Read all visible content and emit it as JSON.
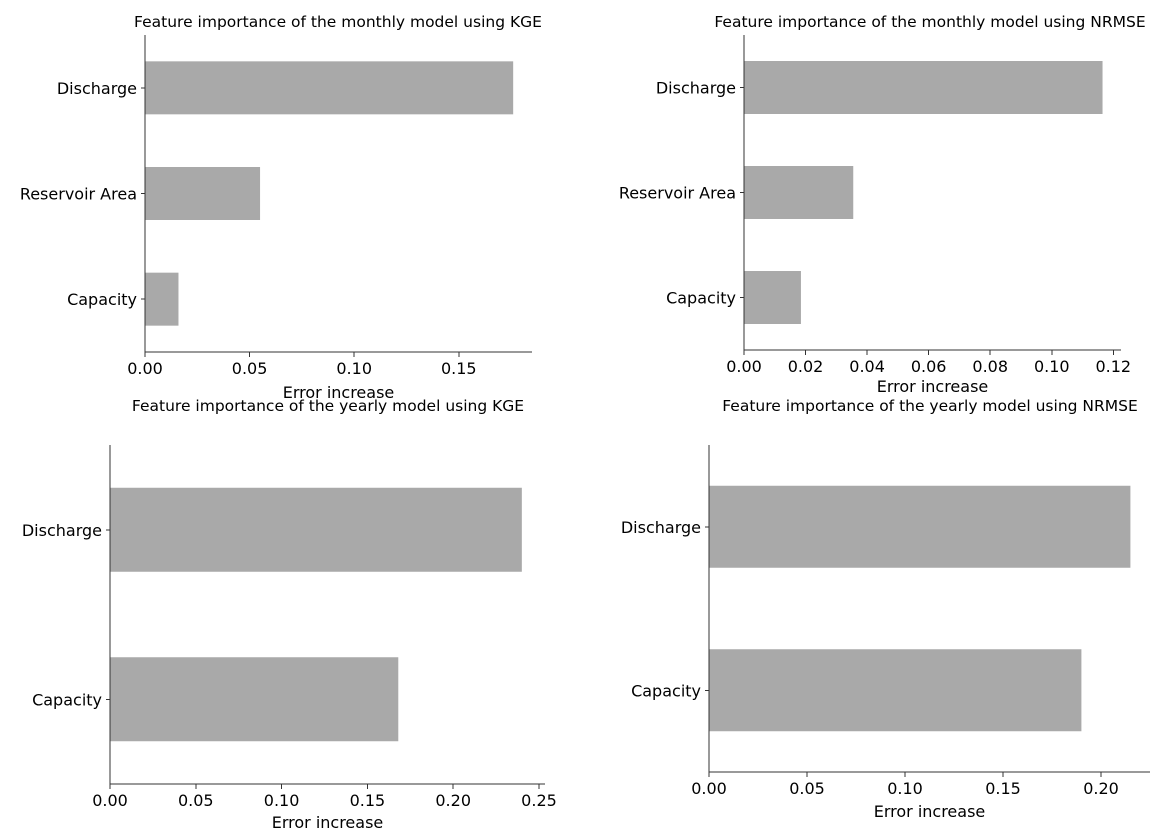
{
  "chart_data": [
    {
      "type": "bar",
      "orientation": "horizontal",
      "title": "Feature importance of the monthly model using KGE",
      "xlabel": "Error increase",
      "ylabel": "",
      "categories": [
        "Discharge",
        "Reservoir Area",
        "Capacity"
      ],
      "values": [
        0.176,
        0.055,
        0.016
      ],
      "xlim": [
        0,
        0.185
      ],
      "xticks": [
        "0.00",
        "0.05",
        "0.10",
        "0.15"
      ],
      "xtick_values": [
        0,
        0.05,
        0.1,
        0.15
      ],
      "bar_color": "#a9a9a9",
      "grid": false
    },
    {
      "type": "bar",
      "orientation": "horizontal",
      "title": "Feature importance of the monthly model using NRMSE",
      "xlabel": "Error increase",
      "ylabel": "",
      "categories": [
        "Discharge",
        "Reservoir Area",
        "Capacity"
      ],
      "values": [
        0.1165,
        0.0355,
        0.0185
      ],
      "xlim": [
        0,
        0.1225
      ],
      "xticks": [
        "0.00",
        "0.02",
        "0.04",
        "0.06",
        "0.08",
        "0.10",
        "0.12"
      ],
      "xtick_values": [
        0,
        0.02,
        0.04,
        0.06,
        0.08,
        0.1,
        0.12
      ],
      "bar_color": "#a9a9a9",
      "grid": false
    },
    {
      "type": "bar",
      "orientation": "horizontal",
      "title": "Feature importance of the yearly model using KGE",
      "xlabel": "Error increase",
      "ylabel": "",
      "categories": [
        "Discharge",
        "Capacity"
      ],
      "values": [
        0.24,
        0.168
      ],
      "xlim": [
        0,
        0.2535
      ],
      "xticks": [
        "0.00",
        "0.05",
        "0.10",
        "0.15",
        "0.20",
        "0.25"
      ],
      "xtick_values": [
        0,
        0.05,
        0.1,
        0.15,
        0.2,
        0.25
      ],
      "bar_color": "#a9a9a9",
      "grid": false
    },
    {
      "type": "bar",
      "orientation": "horizontal",
      "title": "Feature importance of the yearly model using NRMSE",
      "xlabel": "Error increase",
      "ylabel": "",
      "categories": [
        "Discharge",
        "Capacity"
      ],
      "values": [
        0.215,
        0.19
      ],
      "xlim": [
        0,
        0.225
      ],
      "xticks": [
        "0.00",
        "0.05",
        "0.10",
        "0.15",
        "0.20"
      ],
      "xtick_values": [
        0,
        0.05,
        0.1,
        0.15,
        0.2
      ],
      "bar_color": "#a9a9a9",
      "grid": false
    }
  ]
}
